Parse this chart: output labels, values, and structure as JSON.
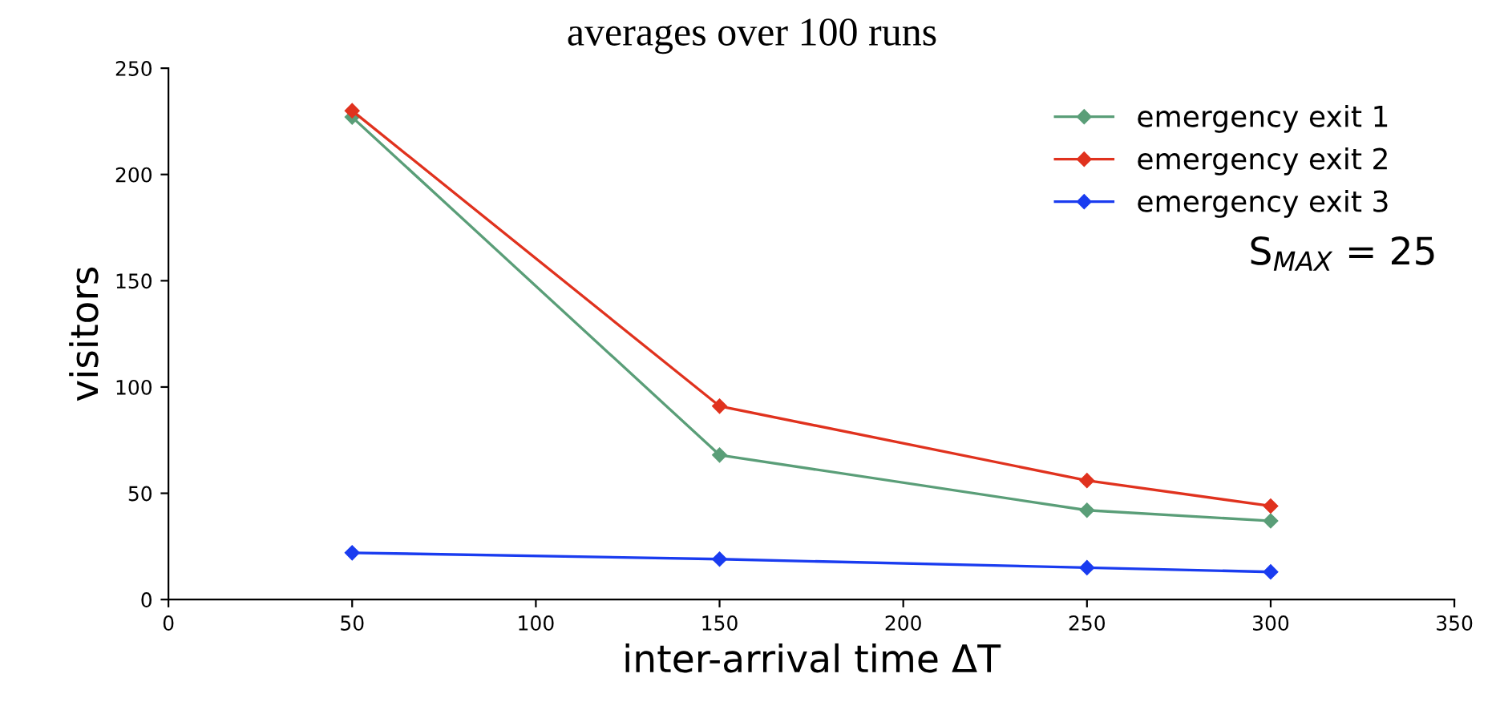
{
  "chart_data": {
    "type": "line",
    "title": "averages over 100 runs",
    "xlabel": "inter-arrival time ΔT",
    "ylabel": "visitors",
    "x": [
      50,
      150,
      250,
      300
    ],
    "series": [
      {
        "name": "emergency exit 1",
        "color": "#5a9e78",
        "values": [
          227,
          68,
          42,
          37
        ]
      },
      {
        "name": "emergency exit 2",
        "color": "#e0321e",
        "values": [
          230,
          91,
          56,
          44
        ]
      },
      {
        "name": "emergency exit 3",
        "color": "#1a3cf0",
        "values": [
          22,
          19,
          15,
          13
        ]
      }
    ],
    "xlim": [
      0,
      350
    ],
    "xticks": [
      0,
      50,
      100,
      150,
      200,
      250,
      300,
      350
    ],
    "ylim": [
      0,
      250
    ],
    "yticks": [
      0,
      50,
      100,
      150,
      200,
      250
    ],
    "annotations": [
      "S$_{MAX}$ = 25"
    ],
    "marker": "diamond",
    "line_style": "solid",
    "legend": "top right",
    "grid": false
  }
}
